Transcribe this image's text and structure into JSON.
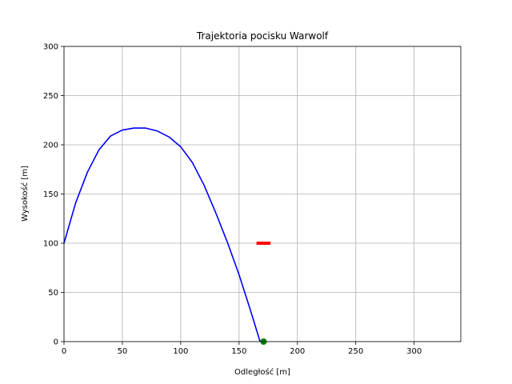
{
  "chart_data": {
    "type": "line",
    "title": "Trajektoria pocisku Warwolf",
    "xlabel": "Odległość [m]",
    "ylabel": "Wysokość [m]",
    "xlim": [
      0,
      340
    ],
    "ylim": [
      0,
      300
    ],
    "xticks": [
      0,
      50,
      100,
      150,
      200,
      250,
      300
    ],
    "yticks": [
      0,
      50,
      100,
      150,
      200,
      250,
      300
    ],
    "grid": true,
    "series": [
      {
        "color": "#0000ff",
        "x": [
          0,
          10,
          20,
          30,
          40,
          50,
          60,
          70,
          80,
          90,
          100,
          110,
          120,
          130,
          140,
          150,
          160,
          168
        ],
        "y": [
          100,
          141,
          172,
          195,
          209,
          215,
          217,
          217,
          214,
          208,
          198,
          182,
          159,
          131,
          101,
          68,
          31,
          0
        ]
      }
    ],
    "target": {
      "color": "#ff0000",
      "x": [
        165,
        177
      ],
      "y": 100
    },
    "impact_point": {
      "color": "#008000",
      "x": 171,
      "y": 0
    }
  }
}
